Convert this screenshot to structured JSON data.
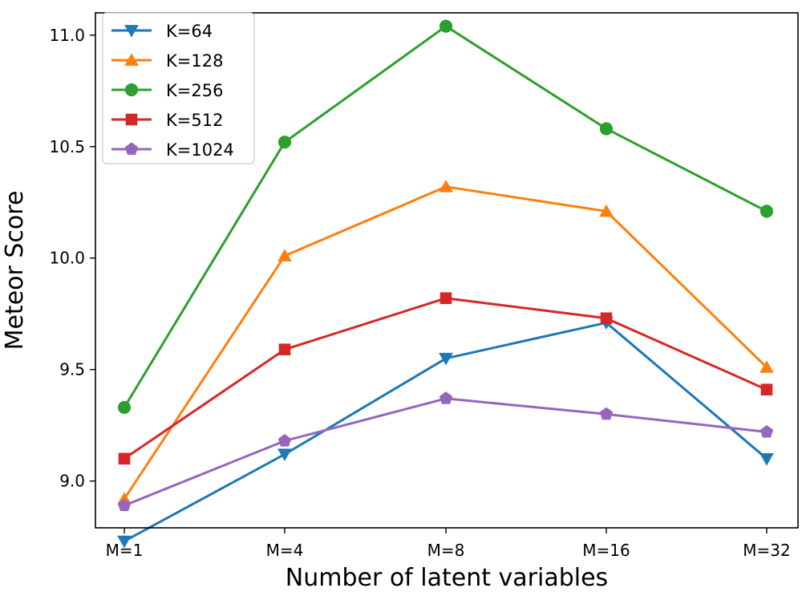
{
  "chart_data": {
    "type": "line",
    "title": "",
    "xlabel": "Number of latent variables",
    "ylabel": "Meteor Score",
    "categories": [
      "M=1",
      "M=4",
      "M=8",
      "M=16",
      "M=32"
    ],
    "ylim": [
      8.79,
      11.1
    ],
    "yticks": [
      9.0,
      9.5,
      10.0,
      10.5,
      11.0
    ],
    "ytick_labels": [
      "9.0",
      "9.5",
      "10.0",
      "10.5",
      "11.0"
    ],
    "grid": false,
    "legend_position": "upper-left",
    "series": [
      {
        "name": "K=64",
        "color": "#1f77b4",
        "marker": "triangle-down",
        "values": [
          8.73,
          9.12,
          9.55,
          9.71,
          9.1
        ]
      },
      {
        "name": "K=128",
        "color": "#ff7f0e",
        "marker": "triangle-up",
        "values": [
          8.92,
          10.01,
          10.32,
          10.21,
          9.51
        ]
      },
      {
        "name": "K=256",
        "color": "#2ca02c",
        "marker": "circle",
        "values": [
          9.33,
          10.52,
          11.04,
          10.58,
          10.21
        ]
      },
      {
        "name": "K=512",
        "color": "#d62728",
        "marker": "square",
        "values": [
          9.1,
          9.59,
          9.82,
          9.73,
          9.41
        ]
      },
      {
        "name": "K=1024",
        "color": "#9467bd",
        "marker": "pentagon",
        "values": [
          8.89,
          9.18,
          9.37,
          9.3,
          9.22
        ]
      }
    ]
  }
}
